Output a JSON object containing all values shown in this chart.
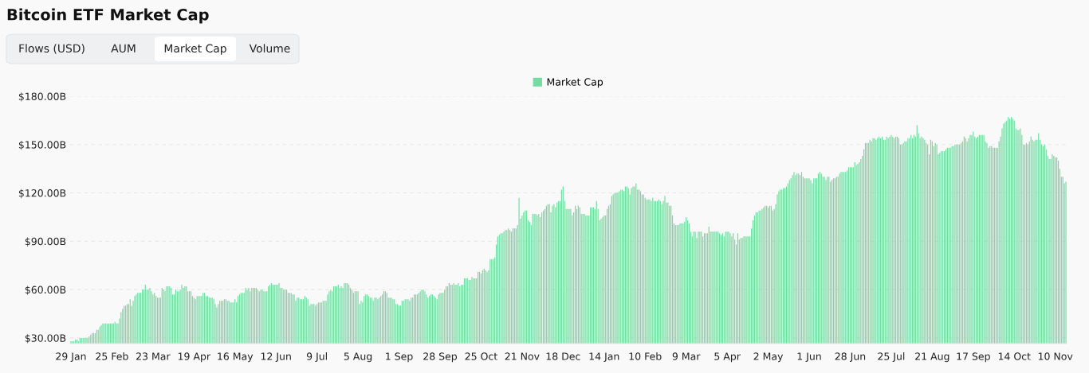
{
  "chart_data": {
    "type": "bar",
    "title": "Bitcoin ETF Market Cap",
    "annotations": [
      "Flows (USD)",
      "AUM",
      "Market Cap",
      "Volume"
    ],
    "categories": [
      "29 Jan",
      null,
      null,
      null,
      null,
      null,
      null,
      null,
      null,
      null,
      null,
      null,
      null,
      null,
      null,
      null,
      null,
      null,
      null,
      null,
      null,
      null,
      null,
      null,
      null,
      null,
      null,
      "25 Feb",
      null,
      null,
      null,
      null,
      null,
      null,
      null,
      null,
      null,
      null,
      null,
      null,
      null,
      null,
      null,
      null,
      null,
      null,
      null,
      null,
      null,
      null,
      null,
      null,
      null,
      null,
      "23 Mar",
      null,
      null,
      null,
      null,
      null,
      null,
      null,
      null,
      null,
      null,
      null,
      null,
      null,
      null,
      null,
      null,
      null,
      null,
      null,
      null,
      null,
      null,
      null,
      null,
      null,
      null,
      "19 Apr",
      null,
      null,
      null,
      null,
      null,
      null,
      null,
      null,
      null,
      null,
      null,
      null,
      null,
      null,
      null,
      null,
      null,
      null,
      null,
      null,
      null,
      null,
      null,
      null,
      null,
      null,
      "16 May",
      null,
      null,
      null,
      null,
      null,
      null,
      null,
      null,
      null,
      null,
      null,
      null,
      null,
      null,
      null,
      null,
      null,
      null,
      null,
      null,
      null,
      null,
      null,
      null,
      null,
      null,
      "12 Jun",
      null,
      null,
      null,
      null,
      null,
      null,
      null,
      null,
      null,
      null,
      null,
      null,
      null,
      null,
      null,
      null,
      null,
      null,
      null,
      null,
      null,
      null,
      null,
      null,
      null,
      null,
      "9 Jul",
      null,
      null,
      null,
      null,
      null,
      null,
      null,
      null,
      null,
      null,
      null,
      null,
      null,
      null,
      null,
      null,
      null,
      null,
      null,
      null,
      null,
      null,
      null,
      null,
      null,
      null,
      "5 Aug",
      null,
      null,
      null,
      null,
      null,
      null,
      null,
      null,
      null,
      null,
      null,
      null,
      null,
      null,
      null,
      null,
      null,
      null,
      null,
      null,
      null,
      null,
      null,
      null,
      null,
      null,
      "1 Sep",
      null,
      null,
      null,
      null,
      null,
      null,
      null,
      null,
      null,
      null,
      null,
      null,
      null,
      null,
      null,
      null,
      null,
      null,
      null,
      null,
      null,
      null,
      null,
      null,
      null,
      null,
      "28 Sep",
      null,
      null,
      null,
      null,
      null,
      null,
      null,
      null,
      null,
      null,
      null,
      null,
      null,
      null,
      null,
      null,
      null,
      null,
      null,
      null,
      null,
      null,
      null,
      null,
      null,
      null,
      "25 Oct",
      null,
      null,
      null,
      null,
      null,
      null,
      null,
      null,
      null,
      null,
      null,
      null,
      null,
      null,
      null,
      null,
      null,
      null,
      null,
      null,
      null,
      null,
      null,
      null,
      null,
      null,
      "21 Nov",
      null,
      null,
      null,
      null,
      null,
      null,
      null,
      null,
      null,
      null,
      null,
      null,
      null,
      null,
      null,
      null,
      null,
      null,
      null,
      null,
      null,
      null,
      null,
      null,
      null,
      null,
      "18 Dec",
      null,
      null,
      null,
      null,
      null,
      null,
      null,
      null,
      null,
      null,
      null,
      null,
      null,
      null,
      null,
      null,
      null,
      null,
      null,
      null,
      null,
      null,
      null,
      null,
      null,
      null,
      "14 Jan",
      null,
      null,
      null,
      null,
      null,
      null,
      null,
      null,
      null,
      null,
      null,
      null,
      null,
      null,
      null,
      null,
      null,
      null,
      null,
      null,
      null,
      null,
      null,
      null,
      null,
      null,
      "10 Feb",
      null,
      null,
      null,
      null,
      null,
      null,
      null,
      null,
      null,
      null,
      null,
      null,
      null,
      null,
      null,
      null,
      null,
      null,
      null,
      null,
      null,
      null,
      null,
      null,
      null,
      null,
      "9 Mar",
      null,
      null,
      null,
      null,
      null,
      null,
      null,
      null,
      null,
      null,
      null,
      null,
      null,
      null,
      null,
      null,
      null,
      null,
      null,
      null,
      null,
      null,
      null,
      null,
      null,
      null,
      "5 Apr",
      null,
      null,
      null,
      null,
      null,
      null,
      null,
      null,
      null,
      null,
      null,
      null,
      null,
      null,
      null,
      null,
      null,
      null,
      null,
      null,
      null,
      null,
      null,
      null,
      null,
      null,
      "2 May",
      null,
      null,
      null,
      null,
      null,
      null,
      null,
      null,
      null,
      null,
      null,
      null,
      null,
      null,
      null,
      null,
      null,
      null,
      null,
      null,
      null,
      null,
      null,
      null,
      null,
      null,
      "1 Jun",
      null,
      null,
      null,
      null,
      null,
      null,
      null,
      null,
      null,
      null,
      null,
      null,
      null,
      null,
      null,
      null,
      null,
      null,
      null,
      null,
      null,
      null,
      null,
      null,
      null,
      null,
      "28 Jun",
      null,
      null,
      null,
      null,
      null,
      null,
      null,
      null,
      null,
      null,
      null,
      null,
      null,
      null,
      null,
      null,
      null,
      null,
      null,
      null,
      null,
      null,
      null,
      null,
      null,
      null,
      "25 Jul",
      null,
      null,
      null,
      null,
      null,
      null,
      null,
      null,
      null,
      null,
      null,
      null,
      null,
      null,
      null,
      null,
      null,
      null,
      null,
      null,
      null,
      null,
      null,
      null,
      null,
      null,
      "21 Aug",
      null,
      null,
      null,
      null,
      null,
      null,
      null,
      null,
      null,
      null,
      null,
      null,
      null,
      null,
      null,
      null,
      null,
      null,
      null,
      null,
      null,
      null,
      null,
      null,
      null,
      null,
      "17 Sep",
      null,
      null,
      null,
      null,
      null,
      null,
      null,
      null,
      null,
      null,
      null,
      null,
      null,
      null,
      null,
      null,
      null,
      null,
      null,
      null,
      null,
      null,
      null,
      null,
      null,
      null,
      "14 Oct",
      null,
      null,
      null,
      null,
      null,
      null,
      null,
      null,
      null,
      null,
      null,
      null,
      null,
      null,
      null,
      null,
      null,
      null,
      null,
      null,
      null,
      null,
      null,
      null,
      null,
      null,
      "10 Nov",
      null,
      null,
      null,
      null,
      null,
      null,
      null
    ],
    "series": [
      {
        "name": "Market Cap",
        "color": "#74dca2",
        "values": [
          28,
          28,
          28,
          29,
          29,
          28,
          30,
          30,
          30,
          30,
          30,
          30,
          31,
          32,
          33,
          33,
          33,
          35,
          35,
          37,
          38,
          39,
          39,
          39,
          39,
          39,
          39,
          39,
          39,
          40,
          39,
          39,
          42,
          46,
          48,
          50,
          50,
          51,
          51,
          54,
          50,
          53,
          56,
          57,
          58,
          58,
          58,
          60,
          60,
          63,
          60,
          60,
          61,
          59,
          57,
          58,
          56,
          55,
          55,
          55,
          61,
          60,
          59,
          62,
          62,
          62,
          61,
          57,
          57,
          60,
          59,
          59,
          60,
          63,
          61,
          62,
          62,
          59,
          59,
          59,
          56,
          55,
          54,
          56,
          56,
          56,
          56,
          58,
          58,
          56,
          56,
          55,
          55,
          55,
          54,
          51,
          49,
          51,
          53,
          53,
          53,
          54,
          54,
          53,
          53,
          52,
          52,
          52,
          54,
          52,
          56,
          57,
          58,
          58,
          58,
          61,
          60,
          61,
          59,
          61,
          61,
          61,
          61,
          60,
          59,
          60,
          60,
          59,
          59,
          59,
          62,
          63,
          64,
          63,
          63,
          63,
          63,
          64,
          61,
          61,
          60,
          60,
          60,
          58,
          58,
          58,
          57,
          57,
          53,
          55,
          55,
          54,
          54,
          54,
          56,
          55,
          54,
          50,
          51,
          51,
          51,
          50,
          51,
          52,
          52,
          52,
          53,
          53,
          53,
          57,
          59,
          60,
          59,
          62,
          62,
          62,
          63,
          61,
          62,
          61,
          64,
          64,
          64,
          63,
          61,
          60,
          58,
          59,
          59,
          59,
          51,
          53,
          52,
          56,
          57,
          57,
          56,
          55,
          55,
          53,
          55,
          55,
          54,
          55,
          56,
          57,
          59,
          59,
          58,
          55,
          55,
          55,
          54,
          54,
          51,
          51,
          50,
          50,
          53,
          53,
          54,
          54,
          54,
          53,
          55,
          55,
          57,
          57,
          57,
          58,
          59,
          60,
          60,
          59,
          57,
          55,
          56,
          57,
          57,
          56,
          55,
          54,
          57,
          58,
          58,
          58,
          60,
          62,
          62,
          64,
          63,
          63,
          64,
          63,
          63,
          64,
          62,
          63,
          63,
          67,
          67,
          67,
          66,
          66,
          68,
          67,
          67,
          67,
          71,
          71,
          70,
          72,
          73,
          72,
          71,
          72,
          79,
          79,
          79,
          80,
          88,
          93,
          94,
          95,
          95,
          96,
          97,
          97,
          98,
          97,
          96,
          98,
          98,
          98,
          100,
          117,
          104,
          106,
          108,
          109,
          109,
          103,
          102,
          100,
          107,
          107,
          107,
          106,
          107,
          105,
          108,
          109,
          110,
          112,
          113,
          113,
          108,
          112,
          113,
          111,
          114,
          115,
          115,
          122,
          124,
          115,
          110,
          110,
          110,
          110,
          106,
          108,
          112,
          110,
          112,
          111,
          107,
          107,
          107,
          106,
          106,
          106,
          111,
          111,
          111,
          110,
          115,
          110,
          103,
          104,
          105,
          106,
          106,
          110,
          112,
          113,
          118,
          119,
          120,
          120,
          120,
          121,
          122,
          122,
          121,
          124,
          124,
          123,
          119,
          123,
          124,
          124,
          126,
          122,
          122,
          121,
          119,
          119,
          117,
          116,
          116,
          116,
          115,
          117,
          115,
          115,
          115,
          116,
          115,
          113,
          115,
          118,
          114,
          114,
          112,
          112,
          106,
          101,
          100,
          100,
          100,
          101,
          101,
          101,
          102,
          105,
          103,
          101,
          96,
          93,
          96,
          96,
          92,
          96,
          96,
          96,
          93,
          95,
          95,
          95,
          99,
          96,
          96,
          96,
          96,
          96,
          96,
          95,
          94,
          95,
          93,
          96,
          96,
          96,
          95,
          93,
          95,
          91,
          88,
          95,
          91,
          92,
          92,
          93,
          93,
          93,
          93,
          93,
          98,
          103,
          106,
          108,
          108,
          109,
          109,
          110,
          111,
          112,
          112,
          111,
          112,
          112,
          109,
          110,
          113,
          119,
          121,
          122,
          122,
          123,
          123,
          124,
          126,
          128,
          129,
          131,
          133,
          131,
          132,
          132,
          131,
          133,
          130,
          129,
          129,
          129,
          129,
          128,
          126,
          129,
          129,
          129,
          132,
          133,
          132,
          130,
          130,
          128,
          130,
          130,
          127,
          128,
          129,
          129,
          130,
          130,
          132,
          133,
          133,
          133,
          133,
          134,
          136,
          136,
          136,
          136,
          139,
          137,
          138,
          139,
          141,
          143,
          147,
          151,
          151,
          151,
          153,
          152,
          154,
          154,
          153,
          154,
          155,
          154,
          155,
          153,
          153,
          155,
          154,
          155,
          156,
          155,
          154,
          155,
          155,
          154,
          150,
          150,
          151,
          152,
          152,
          154,
          154,
          156,
          154,
          156,
          155,
          162,
          157,
          154,
          155,
          154,
          153,
          151,
          150,
          144,
          153,
          152,
          149,
          151,
          150,
          144,
          145,
          146,
          146,
          146,
          147,
          148,
          148,
          148,
          149,
          149,
          150,
          150,
          150,
          150,
          151,
          152,
          155,
          154,
          152,
          154,
          156,
          156,
          158,
          155,
          154,
          155,
          156,
          156,
          156,
          156,
          152,
          151,
          148,
          149,
          149,
          148,
          148,
          148,
          148,
          152,
          155,
          160,
          163,
          164,
          165,
          167,
          166,
          167,
          166,
          165,
          160,
          159,
          159,
          160,
          156,
          150,
          150,
          151,
          150,
          152,
          155,
          153,
          152,
          153,
          153,
          157,
          153,
          150,
          149,
          150,
          147,
          143,
          141,
          141,
          144,
          143,
          142,
          142,
          140,
          135,
          130,
          130,
          126,
          127
        ]
      }
    ],
    "ylim": [
      26.5,
      180
    ],
    "yticks": [
      {
        "value": 30,
        "label": "$30.00B"
      },
      {
        "value": 60,
        "label": "$60.00B"
      },
      {
        "value": 90,
        "label": "$90.00B"
      },
      {
        "value": 120,
        "label": "$120.00B"
      },
      {
        "value": 150,
        "label": "$150.00B"
      },
      {
        "value": 180,
        "label": "$180.00B"
      }
    ],
    "grid": "y",
    "legend": "top"
  }
}
